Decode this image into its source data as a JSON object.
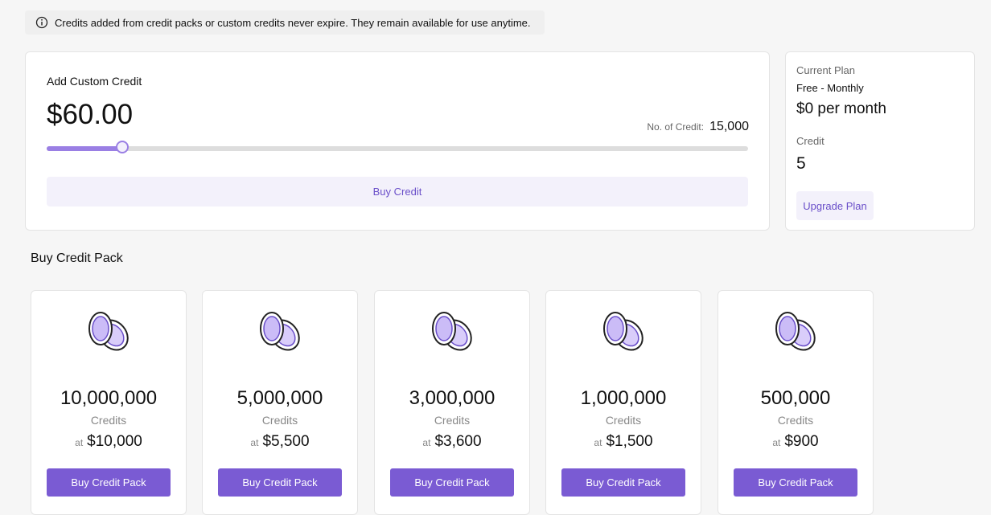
{
  "notice": {
    "text": "Credits added from credit packs or custom credits never expire. They remain available for use anytime."
  },
  "custom_credit": {
    "title": "Add Custom Credit",
    "price": "$60.00",
    "credits_label": "No. of Credit:",
    "credits": "15,000",
    "button": "Buy Credit"
  },
  "current_plan": {
    "label": "Current Plan",
    "plan": "Free - Monthly",
    "price": "$0 per month",
    "credit_label": "Credit",
    "credit": "5",
    "button": "Upgrade Plan"
  },
  "packs": {
    "title": "Buy Credit Pack",
    "items": [
      {
        "credits": "10,000,000",
        "unit": "Credits",
        "at": "at",
        "price": "$10,000",
        "button": "Buy Credit Pack"
      },
      {
        "credits": "5,000,000",
        "unit": "Credits",
        "at": "at",
        "price": "$5,500",
        "button": "Buy Credit Pack"
      },
      {
        "credits": "3,000,000",
        "unit": "Credits",
        "at": "at",
        "price": "$3,600",
        "button": "Buy Credit Pack"
      },
      {
        "credits": "1,000,000",
        "unit": "Credits",
        "at": "at",
        "price": "$1,500",
        "button": "Buy Credit Pack"
      },
      {
        "credits": "500,000",
        "unit": "Credits",
        "at": "at",
        "price": "$900",
        "button": "Buy Credit Pack"
      }
    ]
  }
}
